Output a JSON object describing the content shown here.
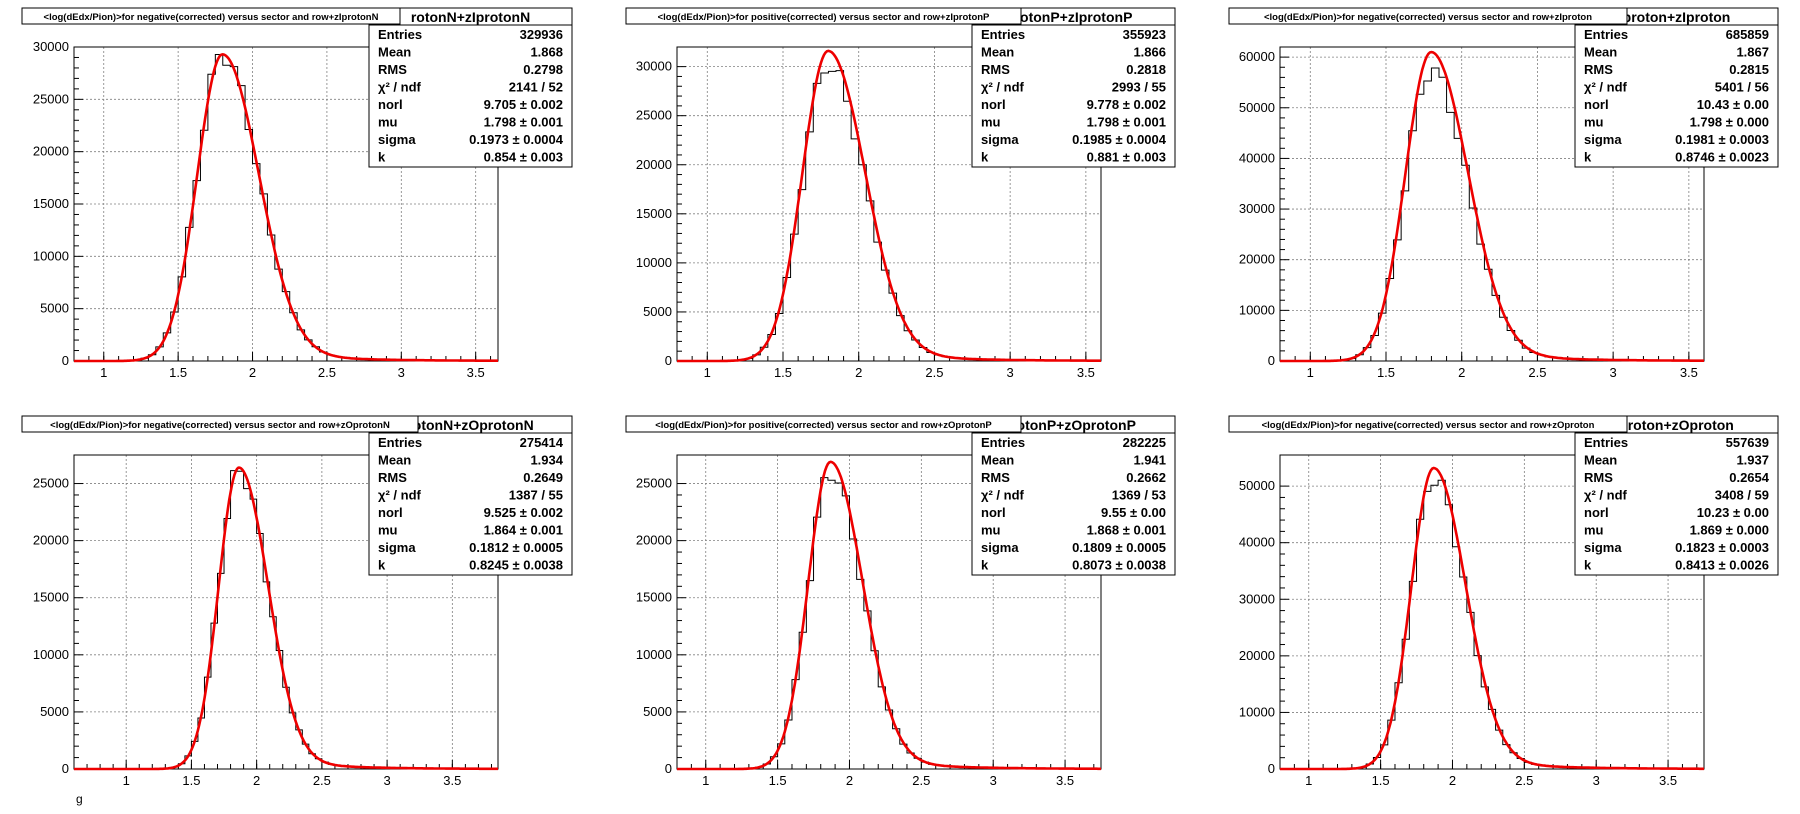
{
  "colors": {
    "fit": "#ee0000",
    "histogram": "#000000",
    "grid": "#808080",
    "frame": "#000000"
  },
  "stat_labels": [
    "Entries",
    "Mean",
    "RMS",
    "χ² / ndf",
    "norl",
    "mu",
    "sigma",
    "k"
  ],
  "footer_mark": "g",
  "panels": [
    {
      "title": "<log(dEdx/Pion)>for negative(corrected) versus sector and row+zIprotonN",
      "stats_header": "rotonN+zIprotonN",
      "stats": [
        "329936",
        "1.868",
        "0.2798",
        "2141 / 52",
        "9.705 ± 0.002",
        "1.798 ± 0.001",
        "0.1973 ± 0.0004",
        "0.854 ± 0.003"
      ]
    },
    {
      "title": "<log(dEdx/Pion)>for positive(corrected) versus sector and row+zIprotonP",
      "stats_header": "rotonP+zIprotonP",
      "stats": [
        "355923",
        "1.866",
        "0.2818",
        "2993 / 55",
        "9.778 ± 0.002",
        "1.798 ± 0.001",
        "0.1985 ± 0.0004",
        "0.881 ± 0.003"
      ]
    },
    {
      "title": "<log(dEdx/Pion)>for negative(corrected) versus sector and row+zIproton",
      "stats_header": "proton+zIproton",
      "stats": [
        "685859",
        "1.867",
        "0.2815",
        "5401 / 56",
        "10.43 ± 0.00",
        "1.798 ± 0.000",
        "0.1981 ± 0.0003",
        "0.8746 ± 0.0023"
      ]
    },
    {
      "title": "<log(dEdx/Pion)>for negative(corrected) versus sector and row+zOprotonN",
      "stats_header": "rotonN+zOprotonN",
      "stats": [
        "275414",
        "1.934",
        "0.2649",
        "1387 / 55",
        "9.525 ± 0.002",
        "1.864 ± 0.001",
        "0.1812 ± 0.0005",
        "0.8245 ± 0.0038"
      ]
    },
    {
      "title": "<log(dEdx/Pion)>for positive(corrected) versus sector and row+zOprotonP",
      "stats_header": "rotonP+zOprotonP",
      "stats": [
        "282225",
        "1.941",
        "0.2662",
        "1369 / 53",
        "9.55 ± 0.00",
        "1.868 ± 0.001",
        "0.1809 ± 0.0005",
        "0.8073 ± 0.0038"
      ]
    },
    {
      "title": "<log(dEdx/Pion)>for negative(corrected) versus sector and row+zOproton",
      "stats_header": "proton+zOproton",
      "stats": [
        "557639",
        "1.937",
        "0.2654",
        "3408 / 59",
        "10.23 ± 0.00",
        "1.869 ± 0.000",
        "0.1823 ± 0.0003",
        "0.8413 ± 0.0026"
      ]
    }
  ],
  "chart_data": [
    {
      "type": "histogram-with-fit",
      "xlim": [
        0.8,
        3.65
      ],
      "ylim": [
        0,
        30000
      ],
      "x_ticks": [
        1,
        1.5,
        2,
        2.5,
        3,
        3.5
      ],
      "y_ticks": [
        0,
        5000,
        10000,
        15000,
        20000,
        25000,
        30000
      ],
      "grid": true,
      "peak": 29300,
      "mu": 1.798,
      "sigma_left": 0.17,
      "sigma_right": 0.24,
      "fit_peak": 29300
    },
    {
      "type": "histogram-with-fit",
      "xlim": [
        0.8,
        3.6
      ],
      "ylim": [
        0,
        32000
      ],
      "x_ticks": [
        1,
        1.5,
        2,
        2.5,
        3,
        3.5
      ],
      "y_ticks": [
        0,
        5000,
        10000,
        15000,
        20000,
        25000,
        30000
      ],
      "grid": true,
      "peak": 30200,
      "mu": 1.798,
      "sigma_left": 0.17,
      "sigma_right": 0.24,
      "fit_peak": 31600
    },
    {
      "type": "histogram-with-fit",
      "xlim": [
        0.8,
        3.6
      ],
      "ylim": [
        0,
        62000
      ],
      "x_ticks": [
        1,
        1.5,
        2,
        2.5,
        3,
        3.5
      ],
      "y_ticks": [
        0,
        10000,
        20000,
        30000,
        40000,
        50000,
        60000
      ],
      "grid": true,
      "peak": 57500,
      "mu": 1.798,
      "sigma_left": 0.17,
      "sigma_right": 0.24,
      "fit_peak": 61000
    },
    {
      "type": "histogram-with-fit",
      "xlim": [
        0.6,
        3.85
      ],
      "ylim": [
        0,
        27500
      ],
      "x_ticks": [
        1,
        1.5,
        2,
        2.5,
        3,
        3.5
      ],
      "y_ticks": [
        0,
        5000,
        10000,
        15000,
        20000,
        25000
      ],
      "grid": true,
      "peak": 26200,
      "mu": 1.864,
      "sigma_left": 0.155,
      "sigma_right": 0.22,
      "fit_peak": 26400
    },
    {
      "type": "histogram-with-fit",
      "xlim": [
        0.8,
        3.75
      ],
      "ylim": [
        0,
        27500
      ],
      "x_ticks": [
        1,
        1.5,
        2,
        2.5,
        3,
        3.5
      ],
      "y_ticks": [
        0,
        5000,
        10000,
        15000,
        20000,
        25000
      ],
      "grid": true,
      "peak": 26000,
      "mu": 1.868,
      "sigma_left": 0.155,
      "sigma_right": 0.22,
      "fit_peak": 26900
    },
    {
      "type": "histogram-with-fit",
      "xlim": [
        0.8,
        3.75
      ],
      "ylim": [
        0,
        55500
      ],
      "x_ticks": [
        1,
        1.5,
        2,
        2.5,
        3,
        3.5
      ],
      "y_ticks": [
        0,
        10000,
        20000,
        30000,
        40000,
        50000
      ],
      "grid": true,
      "peak": 51500,
      "mu": 1.869,
      "sigma_left": 0.155,
      "sigma_right": 0.22,
      "fit_peak": 53200
    }
  ]
}
